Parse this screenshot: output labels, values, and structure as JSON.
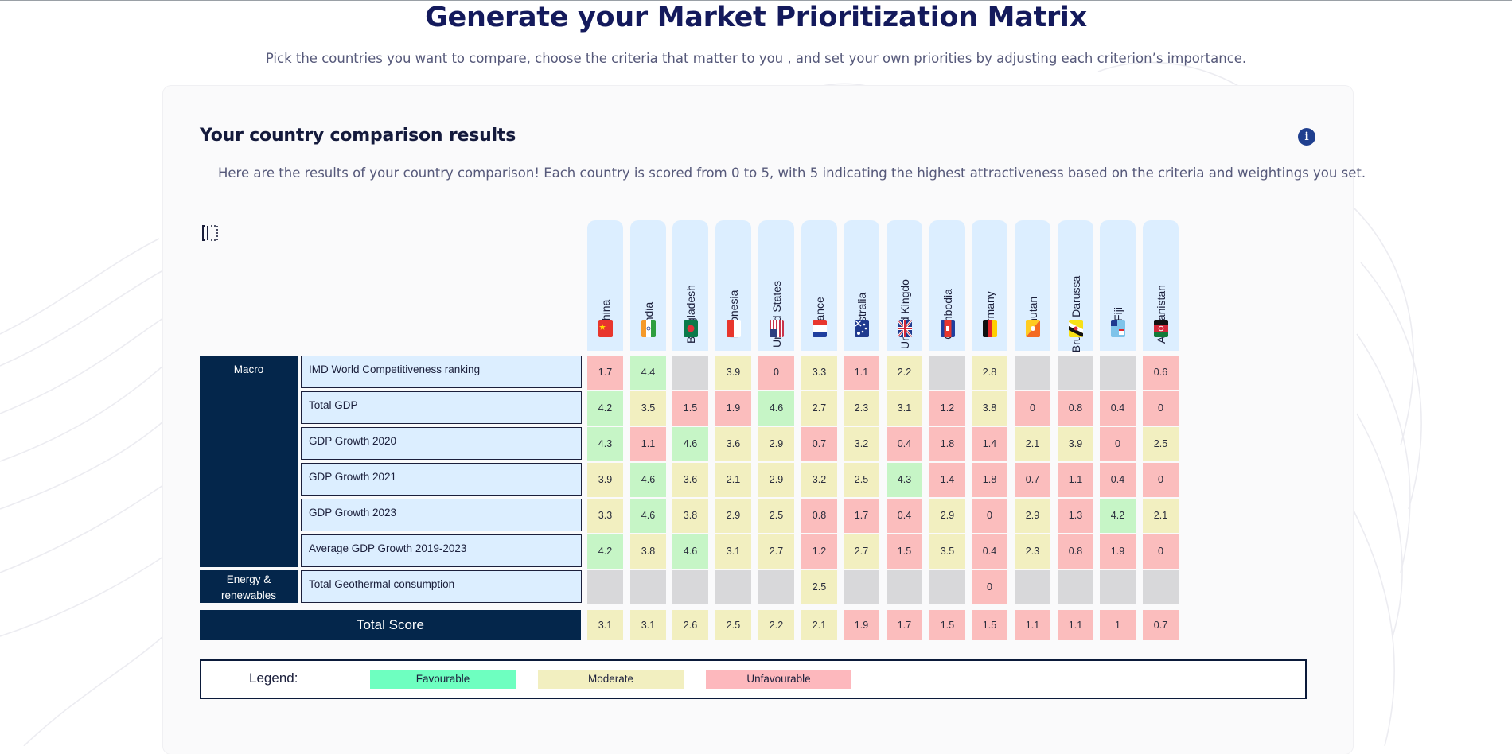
{
  "header": {
    "title": "Generate your Market Prioritization Matrix",
    "subtitle": "Pick the countries you want to compare, choose the criteria that matter to you , and set your own priorities by adjusting each criterion’s importance."
  },
  "results": {
    "title": "Your country comparison results",
    "description": "Here are the results of your country comparison! Each country is scored from 0 to 5, with 5 indicating the highest attractiveness based on the criteria and weightings you set.",
    "info_icon": "info-icon",
    "columns_toggle_icon": "columns-toggle-icon"
  },
  "countries": [
    {
      "name": "China",
      "flag": "flag-china"
    },
    {
      "name": "India",
      "flag": "flag-india"
    },
    {
      "name": "Bangladesh",
      "flag": "flag-bangladesh"
    },
    {
      "name": "Indonesia",
      "flag": "flag-indonesia"
    },
    {
      "name": "United States",
      "flag": "flag-united-states"
    },
    {
      "name": "France",
      "flag": "flag-france"
    },
    {
      "name": "Australia",
      "flag": "flag-australia"
    },
    {
      "name": "United Kingdo",
      "flag": "flag-united-kingdom"
    },
    {
      "name": "Cambodia",
      "flag": "flag-cambodia"
    },
    {
      "name": "Germany",
      "flag": "flag-germany"
    },
    {
      "name": "Bhutan",
      "flag": "flag-bhutan"
    },
    {
      "name": "Brunei Darussa",
      "flag": "flag-brunei"
    },
    {
      "name": "Fiji",
      "flag": "flag-fiji"
    },
    {
      "name": "Afghanistan",
      "flag": "flag-afghanistan"
    }
  ],
  "groups": [
    {
      "label": "Macro",
      "rows": 6
    },
    {
      "label": "Energy & renewables",
      "rows": 1
    }
  ],
  "criteria": [
    {
      "label": "IMD World Competitiveness ranking",
      "scores": [
        "1.7",
        "4.4",
        "",
        "3.9",
        "0",
        "3.3",
        "1.1",
        "2.2",
        "",
        "2.8",
        "",
        "",
        "",
        "0.6"
      ],
      "levels": [
        "r",
        "g",
        "n",
        "y",
        "r",
        "y",
        "r",
        "y",
        "n",
        "y",
        "n",
        "n",
        "n",
        "r"
      ]
    },
    {
      "label": "Total GDP",
      "scores": [
        "4.2",
        "3.5",
        "1.5",
        "1.9",
        "4.6",
        "2.7",
        "2.3",
        "3.1",
        "1.2",
        "3.8",
        "0",
        "0.8",
        "0.4",
        "0"
      ],
      "levels": [
        "g",
        "y",
        "r",
        "r",
        "g",
        "y",
        "y",
        "y",
        "r",
        "y",
        "r",
        "r",
        "r",
        "r"
      ]
    },
    {
      "label": "GDP Growth 2020",
      "scores": [
        "4.3",
        "1.1",
        "4.6",
        "3.6",
        "2.9",
        "0.7",
        "3.2",
        "0.4",
        "1.8",
        "1.4",
        "2.1",
        "3.9",
        "0",
        "2.5"
      ],
      "levels": [
        "g",
        "r",
        "g",
        "y",
        "y",
        "r",
        "y",
        "r",
        "r",
        "r",
        "y",
        "y",
        "r",
        "y"
      ]
    },
    {
      "label": "GDP Growth 2021",
      "scores": [
        "3.9",
        "4.6",
        "3.6",
        "2.1",
        "2.9",
        "3.2",
        "2.5",
        "4.3",
        "1.4",
        "1.8",
        "0.7",
        "1.1",
        "0.4",
        "0"
      ],
      "levels": [
        "y",
        "g",
        "y",
        "y",
        "y",
        "y",
        "y",
        "g",
        "r",
        "r",
        "r",
        "r",
        "r",
        "r"
      ]
    },
    {
      "label": "GDP Growth 2023",
      "scores": [
        "3.3",
        "4.6",
        "3.8",
        "2.9",
        "2.5",
        "0.8",
        "1.7",
        "0.4",
        "2.9",
        "0",
        "2.9",
        "1.3",
        "4.2",
        "2.1"
      ],
      "levels": [
        "y",
        "g",
        "y",
        "y",
        "y",
        "r",
        "r",
        "r",
        "y",
        "r",
        "y",
        "r",
        "g",
        "y"
      ]
    },
    {
      "label": "Average GDP Growth 2019-2023",
      "scores": [
        "4.2",
        "3.8",
        "4.6",
        "3.1",
        "2.7",
        "1.2",
        "2.7",
        "1.5",
        "3.5",
        "0.4",
        "2.3",
        "0.8",
        "1.9",
        "0"
      ],
      "levels": [
        "g",
        "y",
        "g",
        "y",
        "y",
        "r",
        "y",
        "r",
        "y",
        "r",
        "y",
        "r",
        "r",
        "r"
      ]
    },
    {
      "label": "Total Geothermal consumption",
      "scores": [
        "",
        "",
        "",
        "",
        "",
        "2.5",
        "",
        "",
        "",
        "0",
        "",
        "",
        "",
        ""
      ],
      "levels": [
        "n",
        "n",
        "n",
        "n",
        "n",
        "y",
        "n",
        "n",
        "n",
        "r",
        "n",
        "n",
        "n",
        "n"
      ]
    }
  ],
  "total": {
    "label": "Total Score",
    "scores": [
      "3.1",
      "3.1",
      "2.6",
      "2.5",
      "2.2",
      "2.1",
      "1.9",
      "1.7",
      "1.5",
      "1.5",
      "1.1",
      "1.1",
      "1",
      "0.7"
    ],
    "levels": [
      "y",
      "y",
      "y",
      "y",
      "y",
      "y",
      "r",
      "r",
      "r",
      "r",
      "r",
      "r",
      "r",
      "r"
    ]
  },
  "legend": {
    "title": "Legend:",
    "items": [
      {
        "label": "Favourable",
        "color": "#6effc0"
      },
      {
        "label": "Moderate",
        "color": "#f2efc0"
      },
      {
        "label": "Unfavourable",
        "color": "#fdb8bd"
      }
    ]
  },
  "colors": {
    "favourable_cell": "#c6f5c6",
    "moderate_cell": "#f2efc0",
    "unfavourable_cell": "#fbbdbd",
    "empty_cell": "#d8d8da",
    "header_navy": "#04264b",
    "criterion_bg": "#dceeff",
    "title_color": "#141a5c"
  }
}
